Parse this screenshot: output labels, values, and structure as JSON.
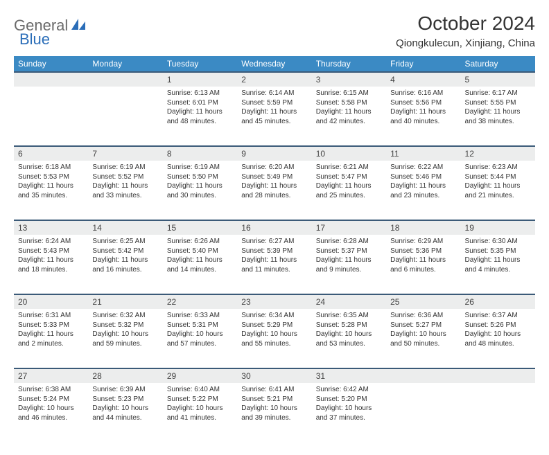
{
  "logo": {
    "part1": "General",
    "part2": "Blue"
  },
  "title": "October 2024",
  "location": "Qiongkulecun, Xinjiang, China",
  "colors": {
    "header_bg": "#3b8ac4",
    "header_text": "#ffffff",
    "daynum_bg": "#eceded",
    "daynum_border": "#3b5a78",
    "body_text": "#333333",
    "logo_gray": "#6a6a6a",
    "logo_blue": "#2a6db8"
  },
  "typography": {
    "title_fontsize": 28,
    "location_fontsize": 15,
    "weekday_fontsize": 12,
    "daynum_fontsize": 12,
    "data_fontsize": 10
  },
  "weekdays": [
    "Sunday",
    "Monday",
    "Tuesday",
    "Wednesday",
    "Thursday",
    "Friday",
    "Saturday"
  ],
  "weeks": [
    [
      null,
      null,
      {
        "n": "1",
        "sr": "6:13 AM",
        "ss": "6:01 PM",
        "dl": "11 hours and 48 minutes."
      },
      {
        "n": "2",
        "sr": "6:14 AM",
        "ss": "5:59 PM",
        "dl": "11 hours and 45 minutes."
      },
      {
        "n": "3",
        "sr": "6:15 AM",
        "ss": "5:58 PM",
        "dl": "11 hours and 42 minutes."
      },
      {
        "n": "4",
        "sr": "6:16 AM",
        "ss": "5:56 PM",
        "dl": "11 hours and 40 minutes."
      },
      {
        "n": "5",
        "sr": "6:17 AM",
        "ss": "5:55 PM",
        "dl": "11 hours and 38 minutes."
      }
    ],
    [
      {
        "n": "6",
        "sr": "6:18 AM",
        "ss": "5:53 PM",
        "dl": "11 hours and 35 minutes."
      },
      {
        "n": "7",
        "sr": "6:19 AM",
        "ss": "5:52 PM",
        "dl": "11 hours and 33 minutes."
      },
      {
        "n": "8",
        "sr": "6:19 AM",
        "ss": "5:50 PM",
        "dl": "11 hours and 30 minutes."
      },
      {
        "n": "9",
        "sr": "6:20 AM",
        "ss": "5:49 PM",
        "dl": "11 hours and 28 minutes."
      },
      {
        "n": "10",
        "sr": "6:21 AM",
        "ss": "5:47 PM",
        "dl": "11 hours and 25 minutes."
      },
      {
        "n": "11",
        "sr": "6:22 AM",
        "ss": "5:46 PM",
        "dl": "11 hours and 23 minutes."
      },
      {
        "n": "12",
        "sr": "6:23 AM",
        "ss": "5:44 PM",
        "dl": "11 hours and 21 minutes."
      }
    ],
    [
      {
        "n": "13",
        "sr": "6:24 AM",
        "ss": "5:43 PM",
        "dl": "11 hours and 18 minutes."
      },
      {
        "n": "14",
        "sr": "6:25 AM",
        "ss": "5:42 PM",
        "dl": "11 hours and 16 minutes."
      },
      {
        "n": "15",
        "sr": "6:26 AM",
        "ss": "5:40 PM",
        "dl": "11 hours and 14 minutes."
      },
      {
        "n": "16",
        "sr": "6:27 AM",
        "ss": "5:39 PM",
        "dl": "11 hours and 11 minutes."
      },
      {
        "n": "17",
        "sr": "6:28 AM",
        "ss": "5:37 PM",
        "dl": "11 hours and 9 minutes."
      },
      {
        "n": "18",
        "sr": "6:29 AM",
        "ss": "5:36 PM",
        "dl": "11 hours and 6 minutes."
      },
      {
        "n": "19",
        "sr": "6:30 AM",
        "ss": "5:35 PM",
        "dl": "11 hours and 4 minutes."
      }
    ],
    [
      {
        "n": "20",
        "sr": "6:31 AM",
        "ss": "5:33 PM",
        "dl": "11 hours and 2 minutes."
      },
      {
        "n": "21",
        "sr": "6:32 AM",
        "ss": "5:32 PM",
        "dl": "10 hours and 59 minutes."
      },
      {
        "n": "22",
        "sr": "6:33 AM",
        "ss": "5:31 PM",
        "dl": "10 hours and 57 minutes."
      },
      {
        "n": "23",
        "sr": "6:34 AM",
        "ss": "5:29 PM",
        "dl": "10 hours and 55 minutes."
      },
      {
        "n": "24",
        "sr": "6:35 AM",
        "ss": "5:28 PM",
        "dl": "10 hours and 53 minutes."
      },
      {
        "n": "25",
        "sr": "6:36 AM",
        "ss": "5:27 PM",
        "dl": "10 hours and 50 minutes."
      },
      {
        "n": "26",
        "sr": "6:37 AM",
        "ss": "5:26 PM",
        "dl": "10 hours and 48 minutes."
      }
    ],
    [
      {
        "n": "27",
        "sr": "6:38 AM",
        "ss": "5:24 PM",
        "dl": "10 hours and 46 minutes."
      },
      {
        "n": "28",
        "sr": "6:39 AM",
        "ss": "5:23 PM",
        "dl": "10 hours and 44 minutes."
      },
      {
        "n": "29",
        "sr": "6:40 AM",
        "ss": "5:22 PM",
        "dl": "10 hours and 41 minutes."
      },
      {
        "n": "30",
        "sr": "6:41 AM",
        "ss": "5:21 PM",
        "dl": "10 hours and 39 minutes."
      },
      {
        "n": "31",
        "sr": "6:42 AM",
        "ss": "5:20 PM",
        "dl": "10 hours and 37 minutes."
      },
      null,
      null
    ]
  ],
  "labels": {
    "sunrise": "Sunrise: ",
    "sunset": "Sunset: ",
    "daylight": "Daylight: "
  }
}
